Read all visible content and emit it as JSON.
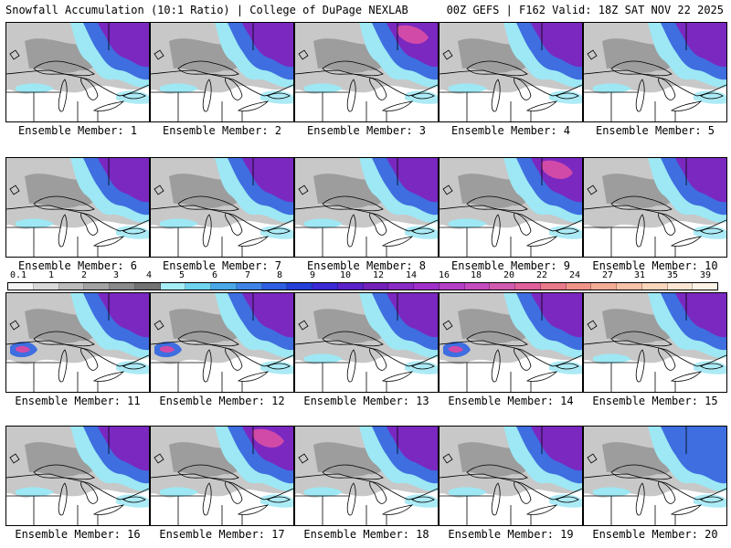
{
  "header": {
    "title_left": "Snowfall Accumulation (10:1 Ratio) | College of DuPage NEXLAB",
    "title_right": "00Z GEFS | F162 Valid: 18Z SAT NOV 22 2025"
  },
  "members": [
    {
      "label": "Ensemble Member: 1"
    },
    {
      "label": "Ensemble Member: 2"
    },
    {
      "label": "Ensemble Member: 3"
    },
    {
      "label": "Ensemble Member: 4"
    },
    {
      "label": "Ensemble Member: 5"
    },
    {
      "label": "Ensemble Member: 6"
    },
    {
      "label": "Ensemble Member: 7"
    },
    {
      "label": "Ensemble Member: 8"
    },
    {
      "label": "Ensemble Member: 9"
    },
    {
      "label": "Ensemble Member: 10"
    },
    {
      "label": "Ensemble Member: 11"
    },
    {
      "label": "Ensemble Member: 12"
    },
    {
      "label": "Ensemble Member: 13"
    },
    {
      "label": "Ensemble Member: 14"
    },
    {
      "label": "Ensemble Member: 15"
    },
    {
      "label": "Ensemble Member: 16"
    },
    {
      "label": "Ensemble Member: 17"
    },
    {
      "label": "Ensemble Member: 18"
    },
    {
      "label": "Ensemble Member: 19"
    },
    {
      "label": "Ensemble Member: 20"
    }
  ],
  "colorbar": {
    "labels": [
      "0.1",
      "1",
      "2",
      "3",
      "4",
      "5",
      "6",
      "7",
      "8",
      "9",
      "10",
      "12",
      "14",
      "16",
      "18",
      "20",
      "22",
      "24",
      "27",
      "31",
      "35",
      "39"
    ],
    "colors": [
      "#f4f4f4",
      "#d9d9d9",
      "#bdbdbd",
      "#a3a3a3",
      "#8a8a8a",
      "#737373",
      "#a6eef7",
      "#6fd3f0",
      "#4aa8e8",
      "#3e84e6",
      "#2f5fe0",
      "#2440d8",
      "#3b2ad6",
      "#5a22c8",
      "#7321b8",
      "#8a2bc4",
      "#a030c8",
      "#b43ec6",
      "#c44cbe",
      "#d05ab0",
      "#e0609a",
      "#e87a8a",
      "#f0948a",
      "#f4ac96",
      "#f6c2a8",
      "#f8d6bc",
      "#fae6d2",
      "#fcf2e6"
    ]
  },
  "legend_colors": {
    "land": "#ffffff",
    "light_snow": "#c8c8c8",
    "moderate_snow": "#8a8a8a",
    "cyan_snow": "#9de8f4",
    "blue_snow": "#3e6ee0",
    "purple_snow": "#7a28c0",
    "pink_snow": "#d24aa8"
  }
}
